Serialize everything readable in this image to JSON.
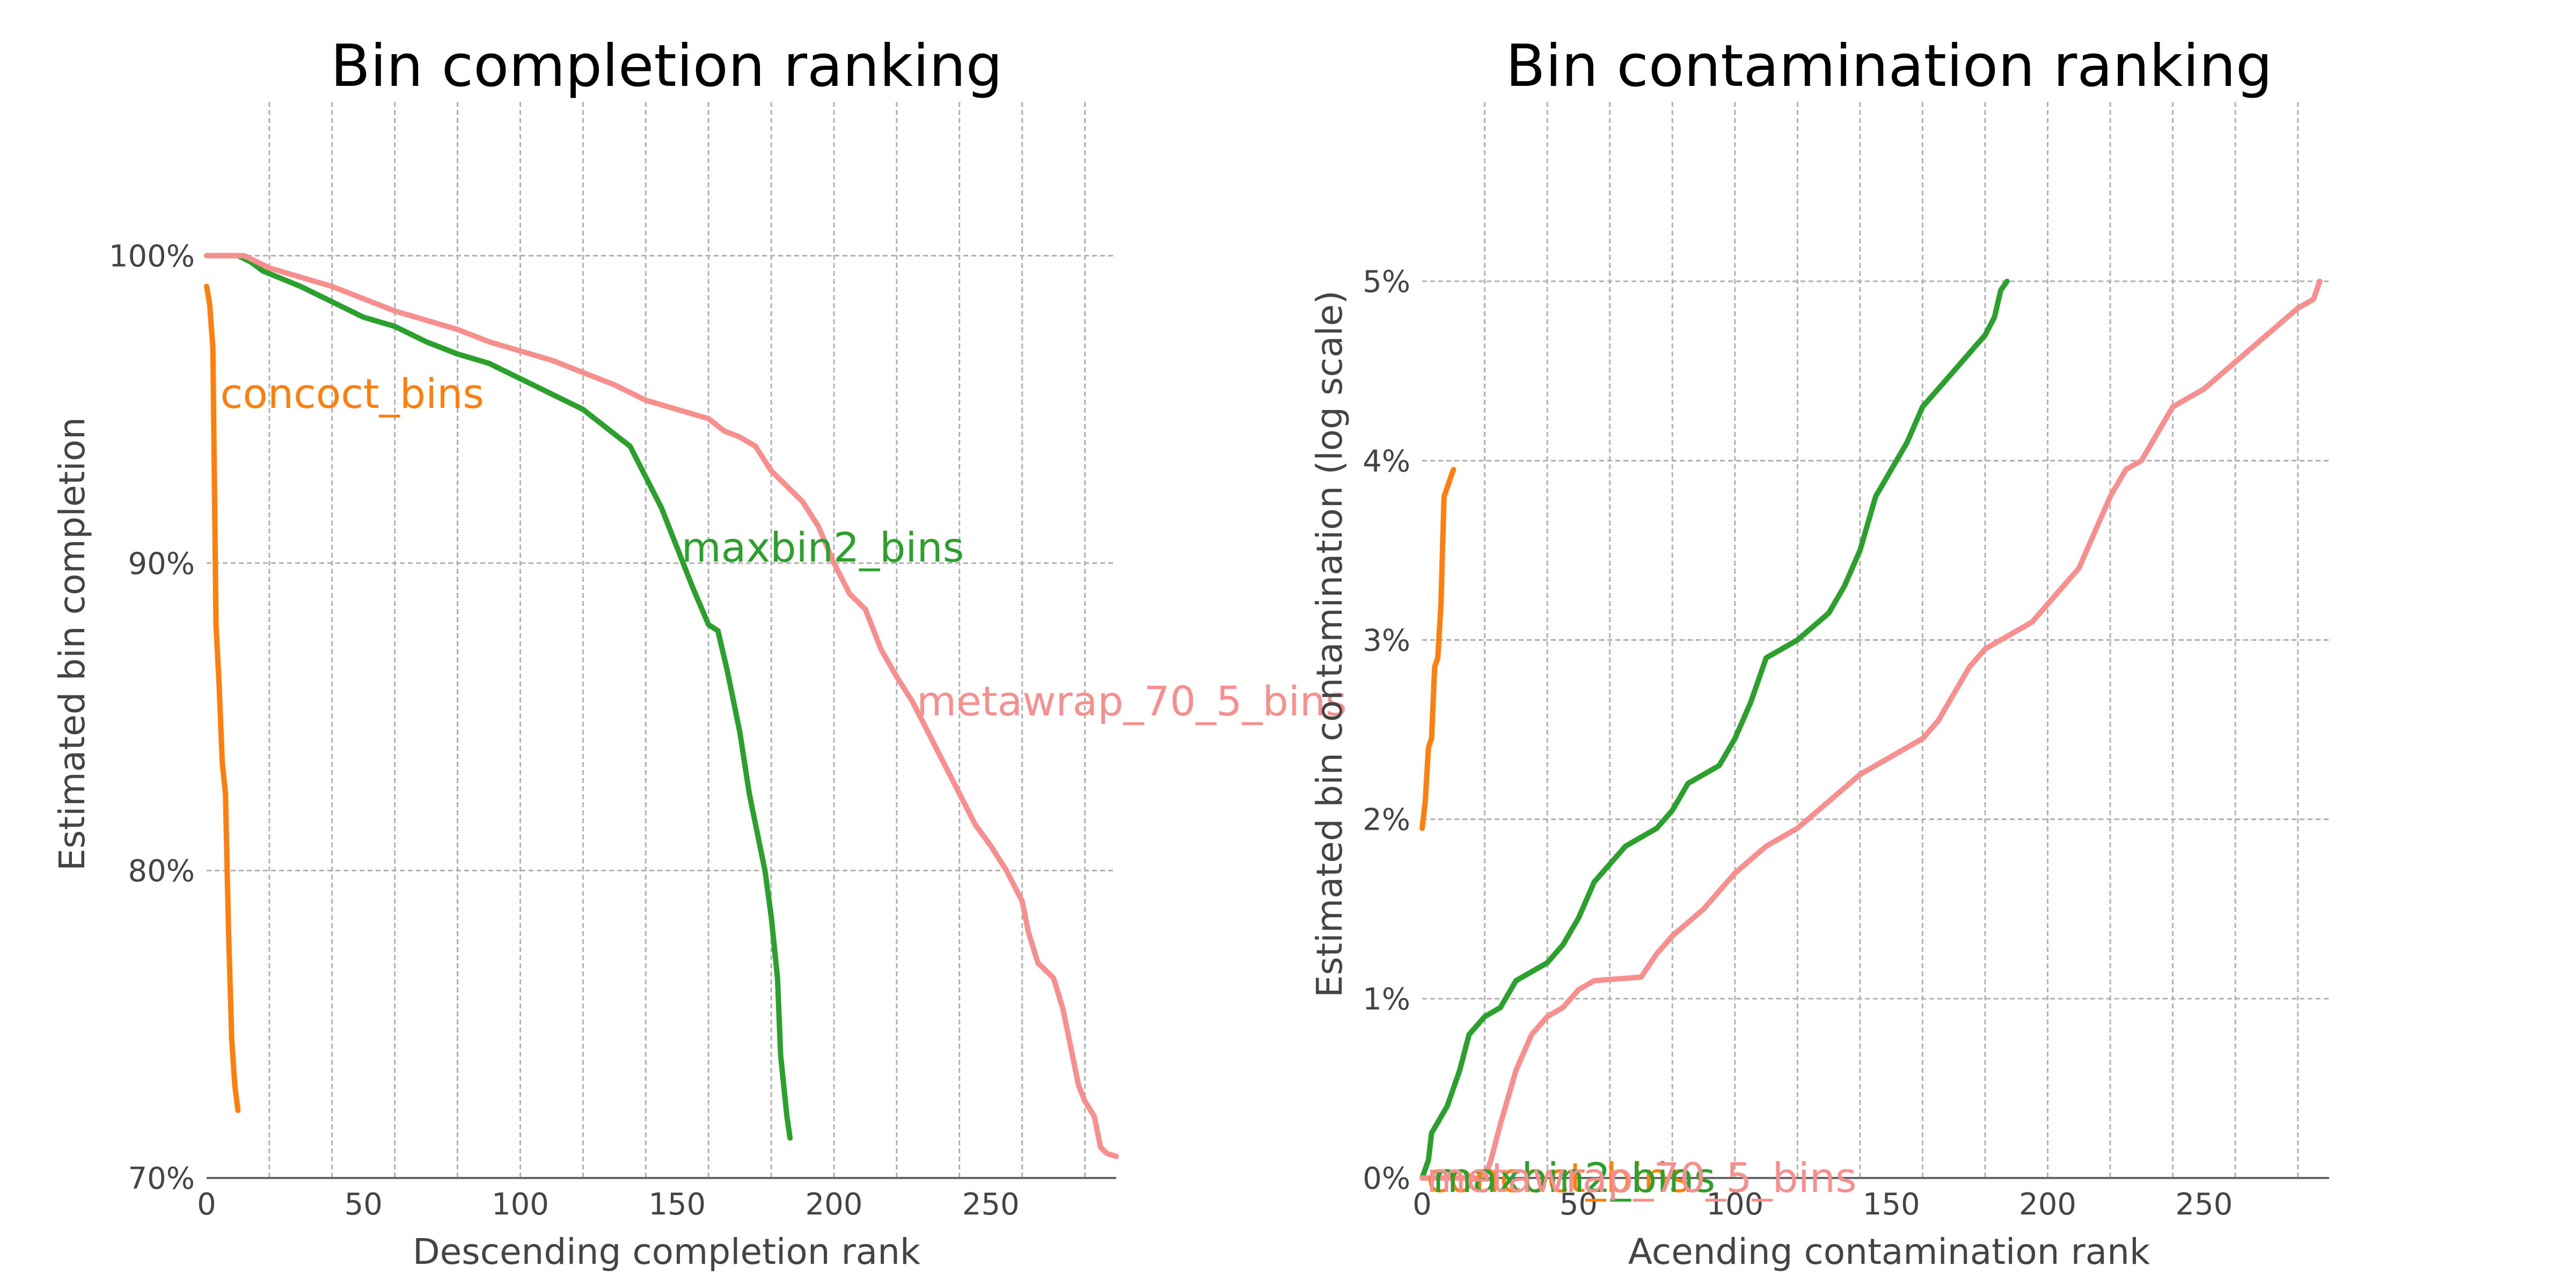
{
  "colors": {
    "concoct_bins": "#ff7f0e",
    "maxbin2_bins": "#2ca02c",
    "metawrap_70_5_bins": "#f78f8f",
    "grid": "#b0b0b0",
    "text": "#444444"
  },
  "chart_data": [
    {
      "type": "line",
      "title": "Bin completion ranking",
      "xlabel": "Descending completion rank",
      "ylabel": "Estimated bin completion",
      "xlim": [
        0,
        290
      ],
      "ylim": [
        70,
        105
      ],
      "x_ticks": [
        0,
        50,
        100,
        150,
        200,
        250
      ],
      "x_tick_labels": [
        "0",
        "50",
        "100",
        "150",
        "200",
        "250"
      ],
      "y_ticks": [
        70,
        80,
        90,
        100
      ],
      "y_tick_labels": [
        "70%",
        "80%",
        "90%",
        "100%"
      ],
      "grid": true,
      "series": [
        {
          "name": "concoct_bins",
          "label_at": [
            3,
            95.5
          ],
          "points": [
            [
              0,
              99.0
            ],
            [
              1,
              98.4
            ],
            [
              2,
              97.0
            ],
            [
              3,
              88.0
            ],
            [
              4,
              86.0
            ],
            [
              5,
              83.5
            ],
            [
              6,
              82.5
            ],
            [
              7,
              78.0
            ],
            [
              8,
              74.5
            ],
            [
              9,
              73.0
            ],
            [
              10,
              72.2
            ]
          ]
        },
        {
          "name": "maxbin2_bins",
          "label_at": [
            150,
            90.5
          ],
          "points": [
            [
              0,
              100.0
            ],
            [
              10,
              100.0
            ],
            [
              14,
              99.8
            ],
            [
              18,
              99.5
            ],
            [
              30,
              99.0
            ],
            [
              42,
              98.4
            ],
            [
              50,
              98.0
            ],
            [
              60,
              97.7
            ],
            [
              70,
              97.2
            ],
            [
              80,
              96.8
            ],
            [
              90,
              96.5
            ],
            [
              100,
              96.0
            ],
            [
              110,
              95.5
            ],
            [
              120,
              95.0
            ],
            [
              130,
              94.2
            ],
            [
              135,
              93.8
            ],
            [
              140,
              92.8
            ],
            [
              145,
              91.8
            ],
            [
              150,
              90.5
            ],
            [
              155,
              89.2
            ],
            [
              160,
              88.0
            ],
            [
              163,
              87.8
            ],
            [
              166,
              86.5
            ],
            [
              170,
              84.5
            ],
            [
              173,
              82.5
            ],
            [
              176,
              81.0
            ],
            [
              178,
              80.0
            ],
            [
              180,
              78.5
            ],
            [
              182,
              76.5
            ],
            [
              183,
              74.0
            ],
            [
              184,
              73.0
            ],
            [
              185,
              72.0
            ],
            [
              186,
              71.3
            ]
          ]
        },
        {
          "name": "metawrap_70_5_bins",
          "label_at": [
            225,
            85.5
          ],
          "points": [
            [
              0,
              100.0
            ],
            [
              12,
              100.0
            ],
            [
              20,
              99.6
            ],
            [
              30,
              99.3
            ],
            [
              40,
              99.0
            ],
            [
              50,
              98.6
            ],
            [
              60,
              98.2
            ],
            [
              70,
              97.9
            ],
            [
              80,
              97.6
            ],
            [
              90,
              97.2
            ],
            [
              100,
              96.9
            ],
            [
              110,
              96.6
            ],
            [
              120,
              96.2
            ],
            [
              130,
              95.8
            ],
            [
              140,
              95.3
            ],
            [
              150,
              95.0
            ],
            [
              160,
              94.7
            ],
            [
              165,
              94.3
            ],
            [
              170,
              94.1
            ],
            [
              175,
              93.8
            ],
            [
              180,
              93.0
            ],
            [
              185,
              92.5
            ],
            [
              190,
              92.0
            ],
            [
              195,
              91.2
            ],
            [
              200,
              90.0
            ],
            [
              205,
              89.0
            ],
            [
              210,
              88.5
            ],
            [
              215,
              87.2
            ],
            [
              220,
              86.3
            ],
            [
              225,
              85.5
            ],
            [
              230,
              84.5
            ],
            [
              235,
              83.5
            ],
            [
              240,
              82.5
            ],
            [
              245,
              81.5
            ],
            [
              250,
              80.8
            ],
            [
              255,
              80.0
            ],
            [
              260,
              79.0
            ],
            [
              262,
              78.0
            ],
            [
              265,
              77.0
            ],
            [
              270,
              76.5
            ],
            [
              273,
              75.5
            ],
            [
              276,
              74.0
            ],
            [
              278,
              73.0
            ],
            [
              280,
              72.5
            ],
            [
              283,
              72.0
            ],
            [
              285,
              71.0
            ],
            [
              287,
              70.8
            ],
            [
              290,
              70.7
            ]
          ]
        }
      ]
    },
    {
      "type": "line",
      "title": "Bin contamination ranking",
      "xlabel": "Acending contamination rank",
      "ylabel": "Estimated bin contamination (log scale)",
      "xlim": [
        0,
        290
      ],
      "ylim": [
        0,
        6
      ],
      "x_ticks": [
        0,
        50,
        100,
        150,
        200,
        250
      ],
      "x_tick_labels": [
        "0",
        "50",
        "100",
        "150",
        "200",
        "250"
      ],
      "y_ticks": [
        0,
        1,
        2,
        3,
        4,
        5
      ],
      "y_tick_labels": [
        "0%",
        "1%",
        "2%",
        "3%",
        "4%",
        "5%"
      ],
      "grid": true,
      "series": [
        {
          "name": "concoct_bins",
          "label_at": [
            0,
            0.0
          ],
          "points": [
            [
              0,
              1.95
            ],
            [
              1,
              2.1
            ],
            [
              2,
              2.4
            ],
            [
              3,
              2.45
            ],
            [
              4,
              2.85
            ],
            [
              5,
              2.9
            ],
            [
              6,
              3.2
            ],
            [
              7,
              3.8
            ],
            [
              8,
              3.85
            ],
            [
              9,
              3.9
            ],
            [
              10,
              3.95
            ]
          ]
        },
        {
          "name": "maxbin2_bins",
          "label_at": [
            2,
            0.0
          ],
          "points": [
            [
              0,
              0.0
            ],
            [
              2,
              0.1
            ],
            [
              3,
              0.25
            ],
            [
              8,
              0.4
            ],
            [
              12,
              0.6
            ],
            [
              15,
              0.8
            ],
            [
              20,
              0.9
            ],
            [
              25,
              0.95
            ],
            [
              30,
              1.1
            ],
            [
              40,
              1.2
            ],
            [
              45,
              1.3
            ],
            [
              50,
              1.45
            ],
            [
              55,
              1.65
            ],
            [
              60,
              1.75
            ],
            [
              65,
              1.85
            ],
            [
              75,
              1.95
            ],
            [
              80,
              2.05
            ],
            [
              85,
              2.2
            ],
            [
              95,
              2.3
            ],
            [
              100,
              2.45
            ],
            [
              105,
              2.65
            ],
            [
              110,
              2.9
            ],
            [
              120,
              3.0
            ],
            [
              130,
              3.15
            ],
            [
              135,
              3.3
            ],
            [
              140,
              3.5
            ],
            [
              145,
              3.8
            ],
            [
              150,
              3.95
            ],
            [
              155,
              4.1
            ],
            [
              160,
              4.3
            ],
            [
              165,
              4.4
            ],
            [
              170,
              4.5
            ],
            [
              175,
              4.6
            ],
            [
              180,
              4.7
            ],
            [
              183,
              4.8
            ],
            [
              185,
              4.95
            ],
            [
              187,
              5.0
            ]
          ]
        },
        {
          "name": "metawrap_70_5_bins",
          "label_at": [
            0,
            0.0
          ],
          "points": [
            [
              0,
              0.0
            ],
            [
              20,
              0.0
            ],
            [
              22,
              0.1
            ],
            [
              25,
              0.3
            ],
            [
              30,
              0.6
            ],
            [
              35,
              0.8
            ],
            [
              40,
              0.9
            ],
            [
              45,
              0.95
            ],
            [
              50,
              1.05
            ],
            [
              55,
              1.1
            ],
            [
              70,
              1.12
            ],
            [
              75,
              1.25
            ],
            [
              80,
              1.35
            ],
            [
              90,
              1.5
            ],
            [
              95,
              1.6
            ],
            [
              100,
              1.7
            ],
            [
              110,
              1.85
            ],
            [
              120,
              1.95
            ],
            [
              130,
              2.1
            ],
            [
              140,
              2.25
            ],
            [
              150,
              2.35
            ],
            [
              160,
              2.45
            ],
            [
              165,
              2.55
            ],
            [
              170,
              2.7
            ],
            [
              175,
              2.85
            ],
            [
              180,
              2.95
            ],
            [
              190,
              3.05
            ],
            [
              195,
              3.1
            ],
            [
              200,
              3.2
            ],
            [
              210,
              3.4
            ],
            [
              220,
              3.8
            ],
            [
              225,
              3.95
            ],
            [
              230,
              4.0
            ],
            [
              240,
              4.3
            ],
            [
              250,
              4.4
            ],
            [
              260,
              4.55
            ],
            [
              270,
              4.7
            ],
            [
              280,
              4.85
            ],
            [
              285,
              4.9
            ],
            [
              287,
              5.0
            ]
          ]
        }
      ]
    }
  ]
}
